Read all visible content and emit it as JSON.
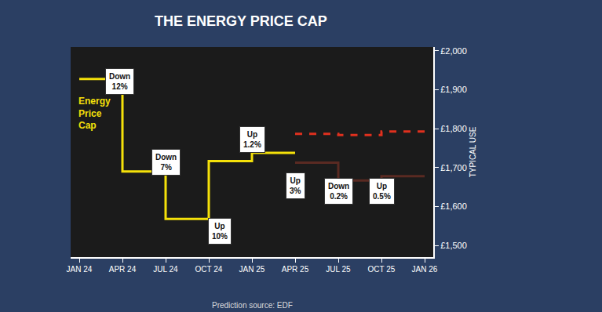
{
  "chart_data": {
    "type": "line",
    "title": "THE ENERGY PRICE CAP",
    "y_label": "TYPICAL USE",
    "caption": "Prediction source: EDF",
    "line_label": "Energy Price Cap",
    "categories": [
      "JAN 24",
      "APR 24",
      "JUL 24",
      "OCT 24",
      "JAN 25",
      "APR 25",
      "JUL 25",
      "OCT 25",
      "JAN 26"
    ],
    "series": [
      {
        "color": "#f5e10a",
        "line_style": "solid",
        "values": [
          1928,
          1690,
          1568,
          1717,
          1738,
          1738,
          null,
          null,
          null
        ]
      },
      {
        "color": "#e0301e",
        "line_style": "dash",
        "values": [
          null,
          null,
          null,
          null,
          null,
          1787,
          1784,
          1793,
          1793
        ]
      },
      {
        "color": "#5a2a22",
        "line_style": "solid",
        "values": [
          null,
          null,
          null,
          null,
          null,
          1713,
          1667,
          1678,
          1678
        ]
      }
    ],
    "ylim": [
      1470,
      2010
    ],
    "yticks": [
      {
        "value": 1500,
        "label": "£1,500"
      },
      {
        "value": 1600,
        "label": "£1,600"
      },
      {
        "value": 1700,
        "label": "£1,700"
      },
      {
        "value": 1800,
        "label": "£1,800"
      },
      {
        "value": 1900,
        "label": "£1,900"
      },
      {
        "value": 2000,
        "label": "£2,000"
      }
    ],
    "grid": false,
    "annotations": [
      {
        "text": "Down 12%",
        "x": "APR 24"
      },
      {
        "text": "Down 7%",
        "x": "JUL 24"
      },
      {
        "text": "Up 10%",
        "x": "OCT 24"
      },
      {
        "text": "Up 1.2%",
        "x": "JAN 25"
      },
      {
        "text": "Up 3%",
        "x": "APR 25"
      },
      {
        "text": "Down 0.2%",
        "x": "JUL 25"
      },
      {
        "text": "Up 0.5%",
        "x": "OCT 25"
      }
    ]
  }
}
